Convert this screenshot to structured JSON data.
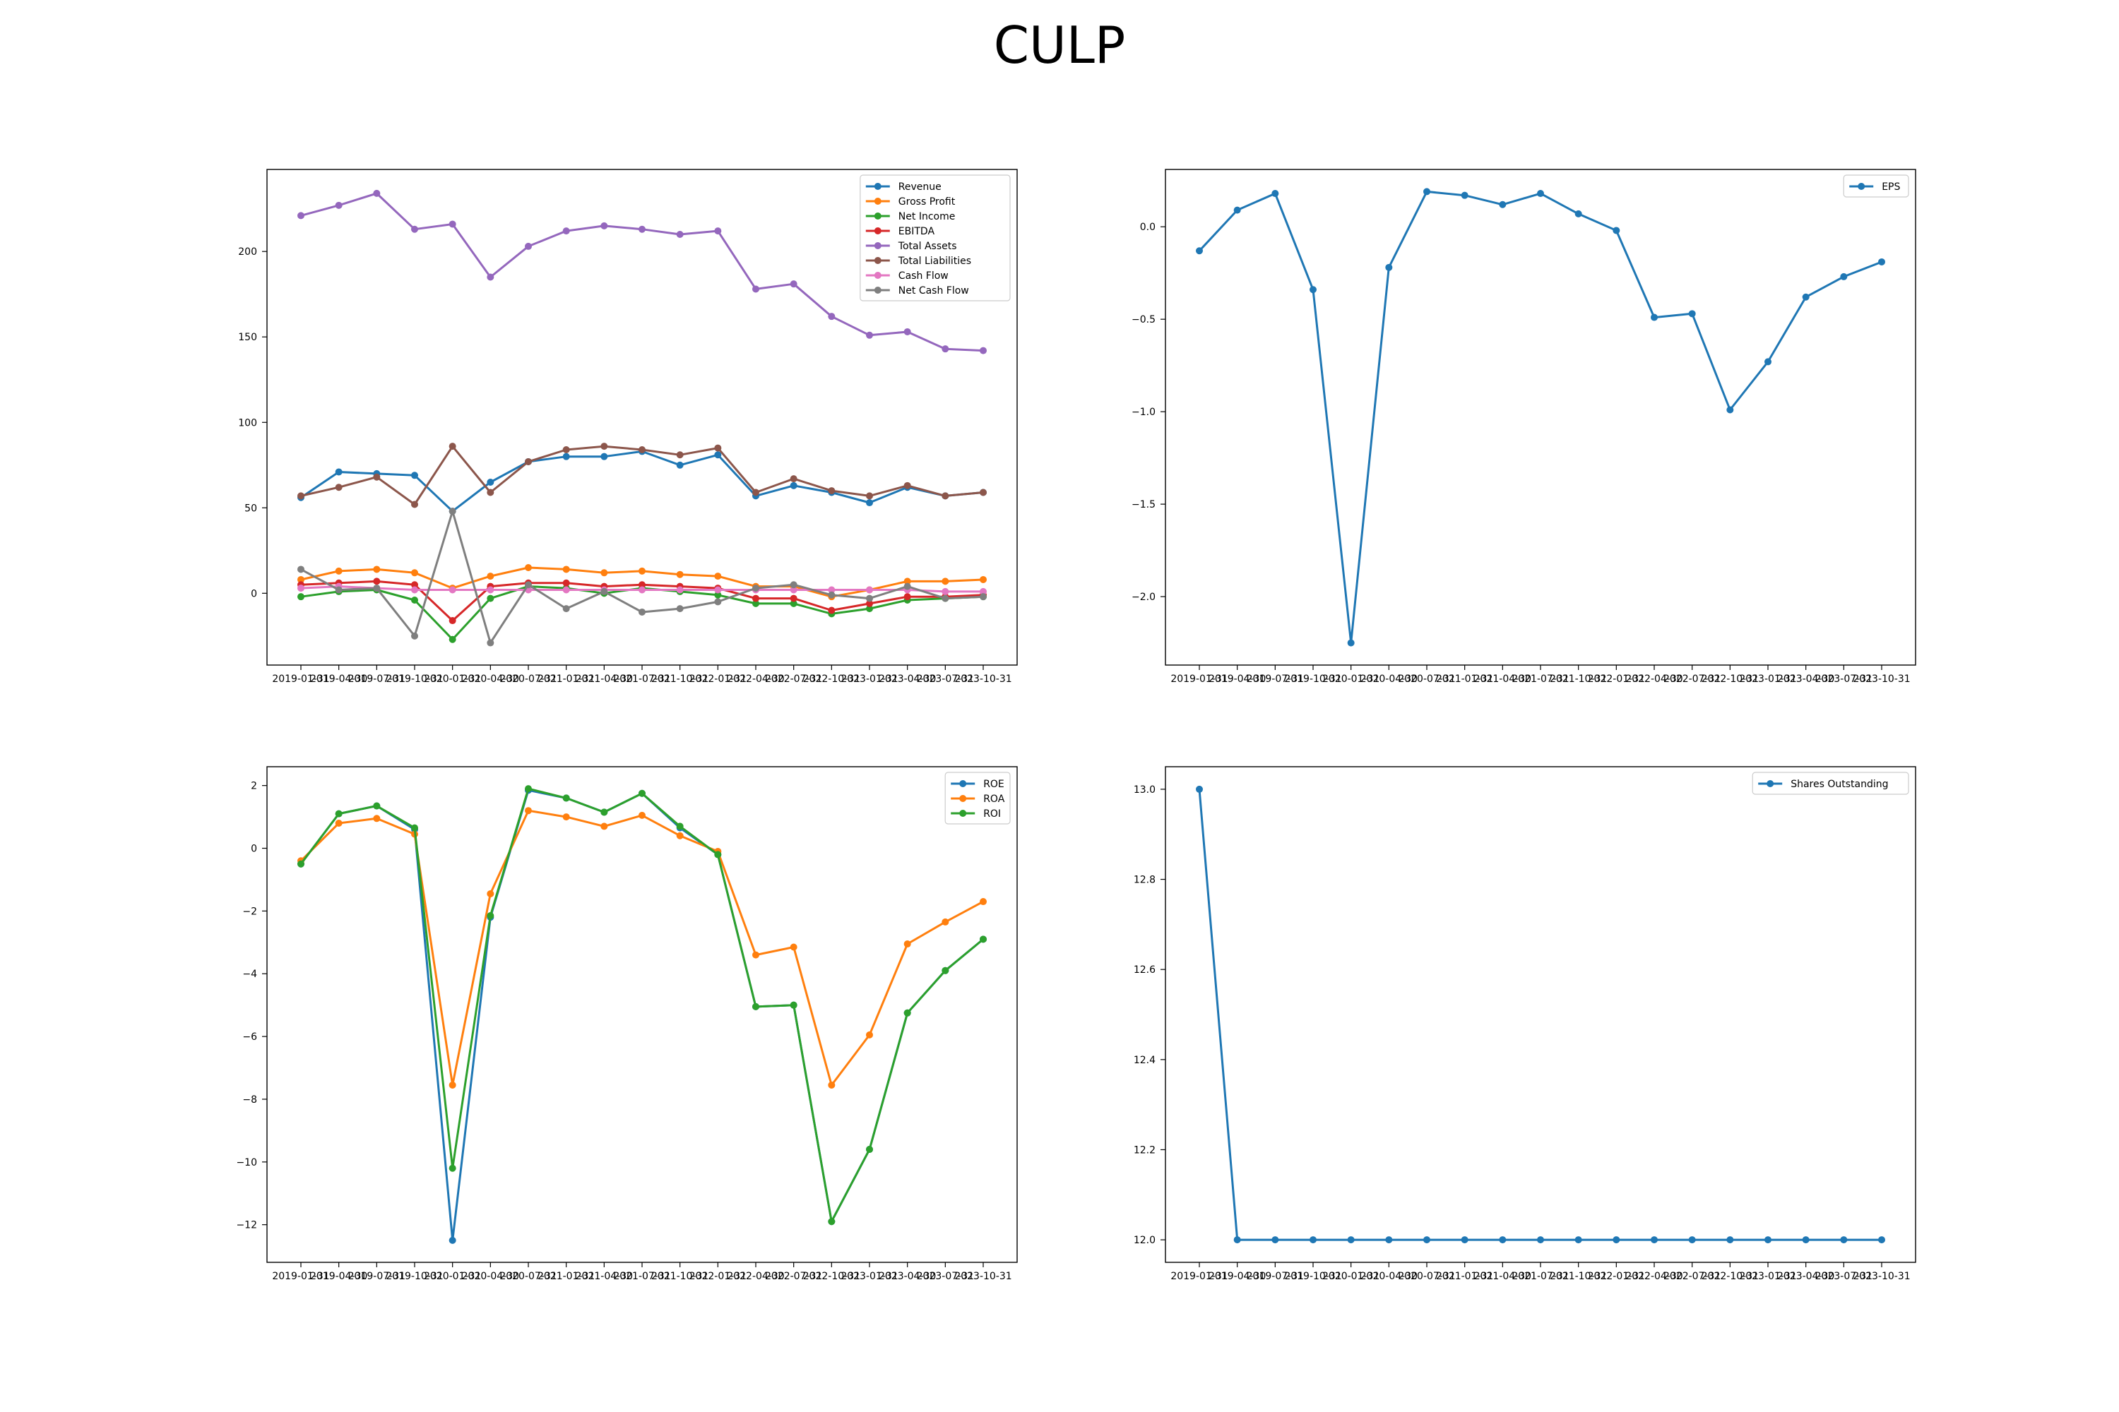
{
  "title": "CULP",
  "x_dates": [
    "2019-01-31",
    "2019-04-30",
    "2019-07-31",
    "2019-10-31",
    "2020-01-31",
    "2020-04-30",
    "2020-07-31",
    "2021-01-31",
    "2021-04-30",
    "2021-07-31",
    "2021-10-31",
    "2022-01-31",
    "2022-04-30",
    "2022-07-31",
    "2022-10-31",
    "2023-01-31",
    "2023-04-30",
    "2023-07-31",
    "2023-10-31"
  ],
  "chart_data": [
    {
      "type": "line",
      "title": "",
      "xlabel": "",
      "ylabel": "",
      "ylim": [
        -42,
        248
      ],
      "yticks": [
        0,
        50,
        100,
        150,
        200
      ],
      "legend": "top-right",
      "grid": false,
      "series": [
        {
          "name": "Revenue",
          "color": "#1f77b4",
          "values": [
            56,
            71,
            70,
            69,
            48,
            65,
            77,
            80,
            80,
            83,
            75,
            81,
            57,
            63,
            59,
            53,
            62,
            57,
            59
          ]
        },
        {
          "name": "Gross Profit",
          "color": "#ff7f0e",
          "values": [
            8,
            13,
            14,
            12,
            3,
            10,
            15,
            14,
            12,
            13,
            11,
            10,
            4,
            4,
            -2,
            2,
            7,
            7,
            8
          ]
        },
        {
          "name": "Net Income",
          "color": "#2ca02c",
          "values": [
            -2,
            1,
            2,
            -4,
            -27,
            -3,
            4,
            3,
            0,
            3,
            1,
            -1,
            -6,
            -6,
            -12,
            -9,
            -4,
            -3,
            -2
          ]
        },
        {
          "name": "EBITDA",
          "color": "#d62728",
          "values": [
            5,
            6,
            7,
            5,
            -16,
            4,
            6,
            6,
            4,
            5,
            4,
            3,
            -3,
            -3,
            -10,
            -6,
            -2,
            -2,
            -1
          ]
        },
        {
          "name": "Total Assets",
          "color": "#9467bd",
          "values": [
            221,
            227,
            234,
            213,
            216,
            185,
            203,
            212,
            215,
            213,
            210,
            212,
            178,
            181,
            162,
            151,
            153,
            143,
            142
          ]
        },
        {
          "name": "Total Liabilities",
          "color": "#8c564b",
          "values": [
            57,
            62,
            68,
            52,
            86,
            59,
            77,
            84,
            86,
            84,
            81,
            85,
            59,
            67,
            60,
            57,
            63,
            57,
            59
          ]
        },
        {
          "name": "Cash Flow",
          "color": "#e377c2",
          "values": [
            3,
            4,
            3,
            2,
            2,
            2,
            2,
            2,
            2,
            2,
            2,
            2,
            2,
            2,
            2,
            2,
            2,
            1,
            1
          ]
        },
        {
          "name": "Net Cash Flow",
          "color": "#7f7f7f",
          "values": [
            14,
            2,
            3,
            -25,
            48,
            -29,
            5,
            -9,
            1,
            -11,
            -9,
            -5,
            3,
            5,
            -1,
            -3,
            4,
            -3,
            -2
          ]
        }
      ]
    },
    {
      "type": "line",
      "title": "",
      "xlabel": "",
      "ylabel": "",
      "ylim": [
        -2.37,
        0.31
      ],
      "yticks": [
        -2.0,
        -1.5,
        -1.0,
        -0.5,
        0.0
      ],
      "legend": "top-right",
      "grid": false,
      "series": [
        {
          "name": "EPS",
          "color": "#1f77b4",
          "values": [
            -0.13,
            0.09,
            0.18,
            -0.34,
            -2.25,
            -0.22,
            0.19,
            0.17,
            0.12,
            0.18,
            0.07,
            -0.02,
            -0.49,
            -0.47,
            -0.99,
            -0.73,
            -0.38,
            -0.27,
            -0.19
          ]
        }
      ]
    },
    {
      "type": "line",
      "title": "",
      "xlabel": "",
      "ylabel": "",
      "ylim": [
        -13.2,
        2.6
      ],
      "yticks": [
        -12,
        -10,
        -8,
        -6,
        -4,
        -2,
        0,
        2
      ],
      "legend": "top-right",
      "grid": false,
      "series": [
        {
          "name": "ROE",
          "color": "#1f77b4",
          "values": [
            -0.5,
            1.1,
            1.35,
            0.6,
            -12.5,
            -2.2,
            1.85,
            1.6,
            1.15,
            1.75,
            0.65,
            -0.2,
            -5.05,
            -5.0,
            -11.9,
            -9.6,
            -5.25,
            -3.9,
            -2.9
          ]
        },
        {
          "name": "ROA",
          "color": "#ff7f0e",
          "values": [
            -0.4,
            0.8,
            0.95,
            0.45,
            -7.55,
            -1.45,
            1.2,
            1.0,
            0.7,
            1.05,
            0.4,
            -0.1,
            -3.4,
            -3.15,
            -7.55,
            -5.95,
            -3.05,
            -2.35,
            -1.7
          ]
        },
        {
          "name": "ROI",
          "color": "#2ca02c",
          "values": [
            -0.5,
            1.1,
            1.35,
            0.65,
            -10.2,
            -2.15,
            1.9,
            1.6,
            1.15,
            1.75,
            0.7,
            -0.2,
            -5.05,
            -5.0,
            -11.9,
            -9.6,
            -5.25,
            -3.9,
            -2.9
          ]
        }
      ]
    },
    {
      "type": "line",
      "title": "",
      "xlabel": "",
      "ylabel": "",
      "ylim": [
        11.95,
        13.05
      ],
      "yticks": [
        12.0,
        12.2,
        12.4,
        12.6,
        12.8,
        13.0
      ],
      "legend": "top-right",
      "grid": false,
      "series": [
        {
          "name": "Shares Outstanding",
          "color": "#1f77b4",
          "values": [
            13,
            12,
            12,
            12,
            12,
            12,
            12,
            12,
            12,
            12,
            12,
            12,
            12,
            12,
            12,
            12,
            12,
            12,
            12
          ]
        }
      ]
    }
  ]
}
